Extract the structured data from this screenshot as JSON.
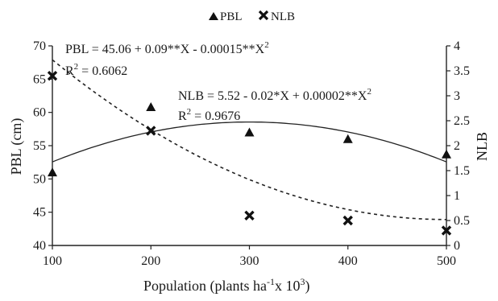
{
  "chart_data": {
    "type": "scatter",
    "x": [
      100,
      200,
      300,
      400,
      500
    ],
    "xlim": [
      100,
      500
    ],
    "x_ticks": [
      100,
      200,
      300,
      400,
      500
    ],
    "xlabel": "Population (plants ha",
    "xlabel_sup1": "-1",
    "xlabel_mid": "x 10",
    "xlabel_sup2": "3",
    "xlabel_end": ")",
    "ylabel_left": "PBL (cm)",
    "ylim_left": [
      40,
      70
    ],
    "y_ticks_left": [
      40,
      45,
      50,
      55,
      60,
      65,
      70
    ],
    "ylabel_right": "NLB",
    "ylim_right": [
      0,
      4
    ],
    "y_ticks_right": [
      0,
      0.5,
      1,
      1.5,
      2,
      2.5,
      3,
      3.5,
      4
    ],
    "grid": false,
    "legend_position": "top-center",
    "series": [
      {
        "name": "PBL",
        "axis": "left",
        "marker": "triangle",
        "values": [
          51,
          60.8,
          57,
          56,
          53.7
        ],
        "fit": {
          "coefficients": [
            45.06,
            0.09,
            -0.00015
          ],
          "line_style": "dashed",
          "eq_parts": [
            "PBL = 45.06 + 0.09**X - 0.00015**X",
            "2"
          ],
          "r2_parts": [
            "R",
            "2",
            " = 0.6062"
          ]
        }
      },
      {
        "name": "NLB",
        "axis": "right",
        "marker": "x",
        "values": [
          3.4,
          2.3,
          0.6,
          0.5,
          0.3
        ],
        "fit": {
          "coefficients": [
            5.52,
            -0.02,
            2e-05
          ],
          "line_style": "solid",
          "eq_parts": [
            "NLB = 5.52 - 0.02*X + 0.00002**X",
            "2"
          ],
          "r2_parts": [
            "R",
            "2",
            " = 0.9676"
          ]
        }
      }
    ]
  }
}
